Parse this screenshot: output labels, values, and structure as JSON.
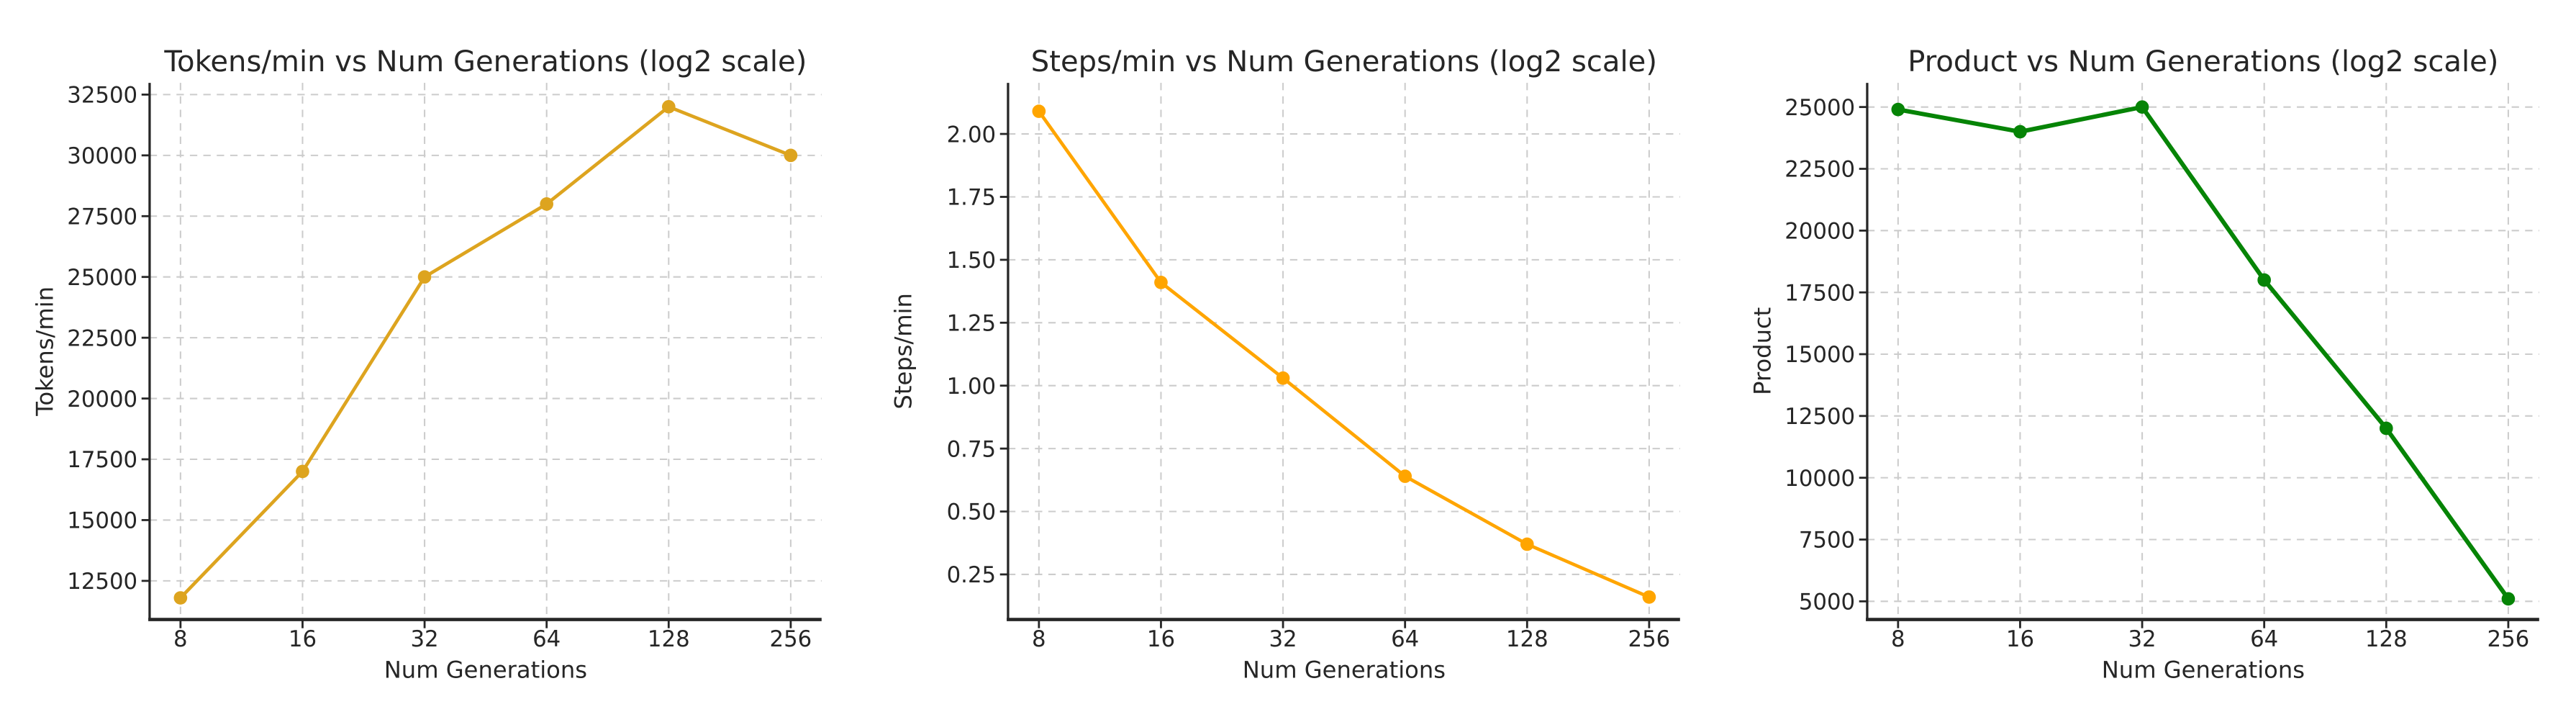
{
  "figure": {
    "background": "#ffffff",
    "text_color": "#262626",
    "grid_color": "#cccccc",
    "spine_color": "#262626"
  },
  "chart_data": [
    {
      "type": "line",
      "title": "Tokens/min vs Num Generations (log2 scale)",
      "xlabel": "Num Generations",
      "ylabel": "Tokens/min",
      "x_scale": "log2",
      "grid": "dashed",
      "legend": "none",
      "x": [
        8,
        16,
        32,
        64,
        128,
        256
      ],
      "x_tick_labels": [
        "8",
        "16",
        "32",
        "64",
        "128",
        "256"
      ],
      "values": [
        11800,
        17000,
        25000,
        28000,
        32000,
        30000
      ],
      "y_ticks": [
        12500,
        15000,
        17500,
        20000,
        22500,
        25000,
        27500,
        30000,
        32500
      ],
      "y_tick_labels": [
        "12500",
        "15000",
        "17500",
        "20000",
        "22500",
        "25000",
        "27500",
        "30000",
        "32500"
      ],
      "ylim": [
        10912,
        32983
      ],
      "line_color": "#dda41f",
      "marker": "o"
    },
    {
      "type": "line",
      "title": "Steps/min vs Num Generations (log2 scale)",
      "xlabel": "Num Generations",
      "ylabel": "Steps/min",
      "x_scale": "log2",
      "grid": "dashed",
      "legend": "none",
      "x": [
        8,
        16,
        32,
        64,
        128,
        256
      ],
      "x_tick_labels": [
        "8",
        "16",
        "32",
        "64",
        "128",
        "256"
      ],
      "values": [
        2.09,
        1.41,
        1.03,
        0.64,
        0.37,
        0.16
      ],
      "y_ticks": [
        0.25,
        0.5,
        0.75,
        1.0,
        1.25,
        1.5,
        1.75,
        2.0
      ],
      "y_tick_labels": [
        "0.25",
        "0.50",
        "0.75",
        "1.00",
        "1.25",
        "1.50",
        "1.75",
        "2.00"
      ],
      "ylim": [
        0.071,
        2.203
      ],
      "line_color": "#ffa500",
      "marker": "o"
    },
    {
      "type": "line",
      "title": "Product vs Num Generations (log2 scale)",
      "xlabel": "Num Generations",
      "ylabel": "Product",
      "x_scale": "log2",
      "grid": "dashed",
      "legend": "none",
      "x": [
        8,
        16,
        32,
        64,
        128,
        256
      ],
      "x_tick_labels": [
        "8",
        "16",
        "32",
        "64",
        "128",
        "256"
      ],
      "values": [
        24900,
        24000,
        25000,
        18000,
        12000,
        5100
      ],
      "y_ticks": [
        5000,
        7500,
        10000,
        12500,
        15000,
        17500,
        20000,
        22500,
        25000
      ],
      "y_tick_labels": [
        "5000",
        "7500",
        "10000",
        "12500",
        "15000",
        "17500",
        "20000",
        "22500",
        "25000"
      ],
      "ylim": [
        4266,
        25978
      ],
      "line_color": "#068406",
      "marker": "o"
    }
  ]
}
